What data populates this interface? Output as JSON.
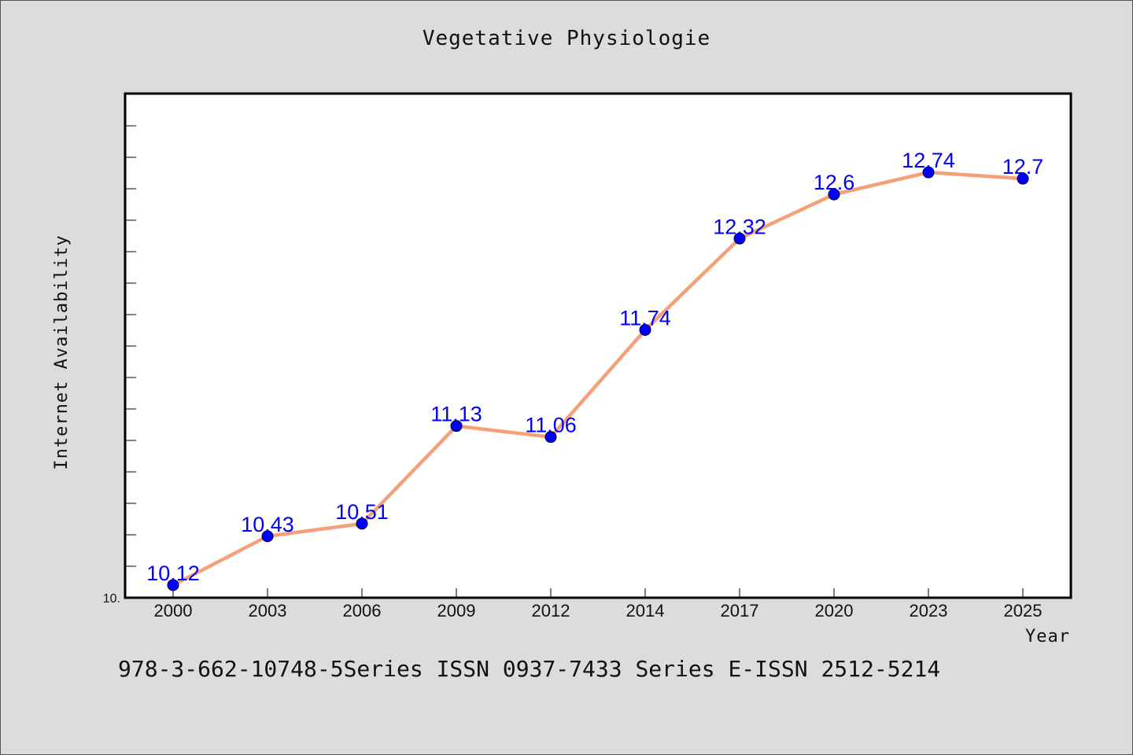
{
  "chart_data": {
    "type": "line",
    "title": "Vegetative Physiologie",
    "xlabel": "Year",
    "ylabel": "Internet Availability",
    "categories": [
      "2000",
      "2003",
      "2006",
      "2009",
      "2012",
      "2014",
      "2017",
      "2020",
      "2023",
      "2025"
    ],
    "series": [
      {
        "values": [
          10.12,
          10.43,
          10.51,
          11.13,
          11.06,
          11.74,
          12.32,
          12.6,
          12.74,
          12.7
        ],
        "labels": [
          "10.12",
          "10.43",
          "10.51",
          "11.13",
          "11.06",
          "11.74",
          "12.32",
          "12.6",
          "12.74",
          "12.7"
        ]
      }
    ],
    "y_tick_labels": [
      "10."
    ],
    "ylim": [
      10.04,
      13.24
    ],
    "grid": false,
    "legend": "none",
    "colors": {
      "line": "#f4a07a",
      "marker": "#0000ff",
      "data_label": "#0000ff",
      "plot_background": "#ffffff",
      "page_background": "#dcdcdc"
    }
  },
  "footer": "978-3-662-10748-5Series ISSN 0937-7433 Series E-ISSN 2512-5214"
}
